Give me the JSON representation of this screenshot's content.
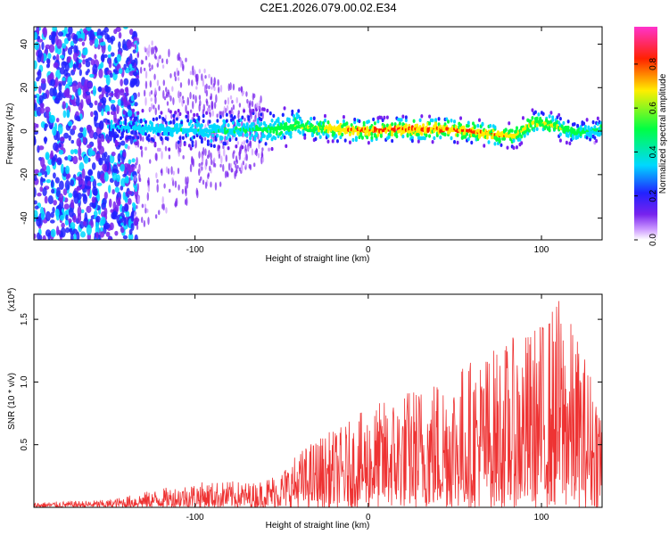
{
  "title": "C2E1.2026.079.00.02.E34",
  "chart_data": [
    {
      "type": "heatmap",
      "title": "C2E1.2026.079.00.02.E34",
      "xlabel": "Height of straight line (km)",
      "ylabel": "Frequency (Hz)",
      "xlim": [
        -193,
        135
      ],
      "ylim": [
        -50,
        48
      ],
      "xticks": [
        -100,
        0,
        100
      ],
      "xtick_labels": [
        "-100",
        "0",
        "100"
      ],
      "yticks": [
        -40,
        -20,
        0,
        20,
        40
      ],
      "ytick_labels": [
        "-40",
        "-20",
        "0",
        "20",
        "40"
      ],
      "colorbar": {
        "label": "Normalized spectral amplitude",
        "range": [
          0.0,
          0.97
        ],
        "ticks": [
          0.0,
          0.2,
          0.4,
          0.6,
          0.8
        ],
        "tick_labels": [
          "0.0",
          "0.2",
          "0.4",
          "0.6",
          "0.8"
        ],
        "colormap": [
          "#ffffff",
          "#cc99ff",
          "#7722ee",
          "#2222ff",
          "#00d8ff",
          "#00ff44",
          "#ffee00",
          "#ff2200",
          "#ff33cc"
        ]
      },
      "ridge": {
        "x": [
          -150,
          -120,
          -90,
          -60,
          -40,
          -20,
          0,
          20,
          40,
          60,
          75,
          85,
          95,
          105,
          120,
          135
        ],
        "y": [
          2,
          1,
          0,
          1,
          2,
          1,
          0,
          1,
          1,
          0,
          -2,
          -2,
          4,
          3,
          -1,
          1
        ],
        "peak_amplitude": [
          0.3,
          0.35,
          0.4,
          0.45,
          0.55,
          0.75,
          0.85,
          0.9,
          0.85,
          0.8,
          0.8,
          0.7,
          0.7,
          0.65,
          0.5,
          0.45
        ]
      }
    },
    {
      "type": "line",
      "xlabel": "Height of straight line (km)",
      "ylabel": "SNR (10 * v/v)",
      "y_multiplier": "(x10",
      "y_multiplier_exp": "4",
      "y_multiplier_close": ")",
      "xlim": [
        -193,
        135
      ],
      "ylim": [
        0,
        17000
      ],
      "xticks": [
        -100,
        0,
        100
      ],
      "xtick_labels": [
        "-100",
        "0",
        "100"
      ],
      "yticks": [
        5000,
        10000,
        15000
      ],
      "ytick_labels": [
        "0.5",
        "1.0",
        "1.5"
      ],
      "color": "#ee3333",
      "envelope": {
        "x": [
          -193,
          -150,
          -140,
          -120,
          -100,
          -80,
          -65,
          -50,
          -40,
          -30,
          -15,
          0,
          15,
          30,
          45,
          60,
          75,
          90,
          100,
          110,
          120,
          135
        ],
        "max": [
          400,
          600,
          900,
          1500,
          2000,
          2100,
          2000,
          3000,
          4500,
          5600,
          6500,
          8000,
          9000,
          10000,
          11000,
          12000,
          13000,
          14000,
          15000,
          17000,
          14000,
          9000
        ]
      }
    }
  ]
}
